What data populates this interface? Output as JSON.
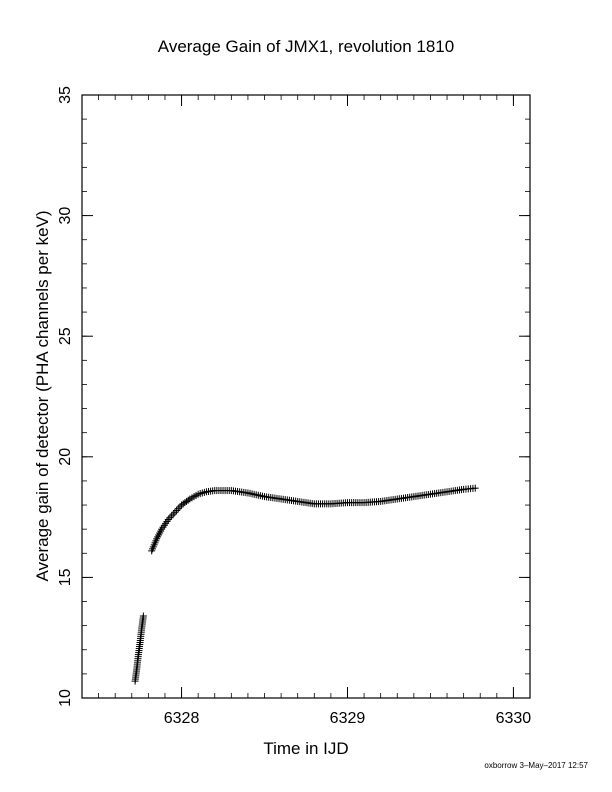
{
  "footer": {
    "stamp": "oxborrow  3–May–2017 12:57"
  },
  "chart_data": {
    "type": "scatter",
    "title": "Average Gain of JMX1, revolution 1810",
    "xlabel": "Time in IJD",
    "ylabel": "Average gain of detector (PHA channels per keV)",
    "xlim": [
      6327.4,
      6330.1
    ],
    "ylim": [
      10,
      35
    ],
    "xticks": [
      6328,
      6329,
      6330
    ],
    "yticks": [
      10,
      15,
      20,
      25,
      30,
      35
    ],
    "xtick_labels": [
      "6328",
      "6329",
      "6330"
    ],
    "ytick_labels": [
      "10",
      "15",
      "20",
      "25",
      "30",
      "35"
    ],
    "x_minor_step": 0.1,
    "y_minor_step": 1,
    "grid": false,
    "marker": "plus",
    "series": [
      {
        "segments": [
          {
            "x": [
              6327.72,
              6327.73,
              6327.74,
              6327.75,
              6327.76,
              6327.77
            ],
            "y": [
              10.7,
              11.2,
              11.8,
              12.3,
              12.9,
              13.4
            ]
          },
          {
            "x": [
              6327.82,
              6327.85,
              6327.88,
              6327.92,
              6327.96,
              6328.0,
              6328.05,
              6328.1,
              6328.15,
              6328.2,
              6328.3,
              6328.4,
              6328.5,
              6328.6,
              6328.7,
              6328.8,
              6328.9,
              6329.0,
              6329.1,
              6329.2,
              6329.3,
              6329.4,
              6329.5,
              6329.6,
              6329.7,
              6329.77
            ],
            "y": [
              16.1,
              16.6,
              17.0,
              17.4,
              17.7,
              18.0,
              18.25,
              18.45,
              18.55,
              18.6,
              18.6,
              18.5,
              18.35,
              18.25,
              18.15,
              18.05,
              18.05,
              18.1,
              18.1,
              18.15,
              18.25,
              18.35,
              18.45,
              18.55,
              18.65,
              18.7
            ]
          }
        ]
      }
    ]
  }
}
